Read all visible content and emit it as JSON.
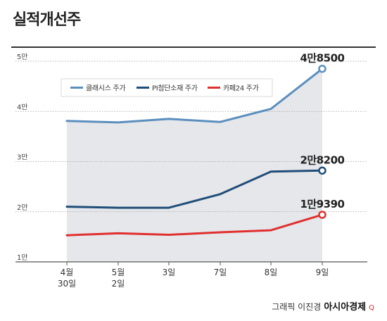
{
  "header": {
    "title": "실적개선주"
  },
  "credit": {
    "byline": "그래픽 이진경",
    "publisher": "아시아경제",
    "mark": "Q"
  },
  "chart_data": {
    "type": "line",
    "title": "실적개선주",
    "categories": [
      "4월 30일",
      "5월 2일",
      "3일",
      "7일",
      "8일",
      "9일"
    ],
    "category_lines": [
      [
        "4월",
        "30일"
      ],
      [
        "5월",
        "2일"
      ],
      [
        "3일"
      ],
      [
        "7일"
      ],
      [
        "8일"
      ],
      [
        "9일"
      ]
    ],
    "y_ticks": [
      {
        "value": 10000,
        "label": "1만"
      },
      {
        "value": 20000,
        "label": "2만"
      },
      {
        "value": 30000,
        "label": "3만"
      },
      {
        "value": 40000,
        "label": "4만"
      },
      {
        "value": 50000,
        "label": "5만"
      }
    ],
    "ylim": [
      10000,
      50000
    ],
    "grid": true,
    "legend_position": "top-left",
    "series": [
      {
        "name": "클래시스 주가",
        "color": "#5b8fbe",
        "values": [
          38100,
          37800,
          38500,
          37900,
          40500,
          48500
        ],
        "end_label": "4만8500",
        "shaded": true
      },
      {
        "name": "PI첨단소재 주가",
        "color": "#1f4e79",
        "values": [
          21000,
          20800,
          20800,
          23500,
          28000,
          28200
        ],
        "end_label": "2만8200",
        "shaded": false
      },
      {
        "name": "카페24 주가",
        "color": "#e03030",
        "values": [
          15300,
          15700,
          15400,
          15900,
          16300,
          19390
        ],
        "end_label": "1만9390",
        "shaded": false
      }
    ]
  }
}
